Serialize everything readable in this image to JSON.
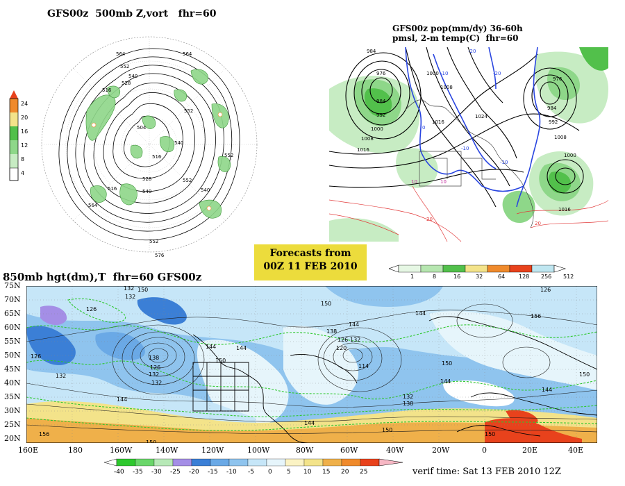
{
  "panel_500mb": {
    "title": "GFS00z  500mb Z,vort   fhr=60",
    "colorbar_labels": [
      "24",
      "20",
      "16",
      "12",
      "8",
      "4"
    ],
    "contour_labels": [
      "564",
      "564",
      "552",
      "540",
      "528",
      "516",
      "504",
      "552",
      "552",
      "540",
      "516",
      "528",
      "540",
      "552",
      "564",
      "576",
      "552",
      "540",
      "516"
    ]
  },
  "panel_precip": {
    "title_line1": "GFS00z pop(mm/dy) 36-60h",
    "title_line2": "pmsl, 2-m temp(C)  fhr=60",
    "colorbar_labels": [
      "1",
      "8",
      "16",
      "32",
      "64",
      "128",
      "256",
      "512"
    ],
    "pressure_labels": [
      "984",
      "976",
      "984",
      "992",
      "1000",
      "1008",
      "1016",
      "1024",
      "1016",
      "1008",
      "1000",
      "976",
      "984",
      "992",
      "1000",
      "1008",
      "1016"
    ],
    "temp_labels": [
      "-20",
      "-10",
      "-20",
      "0",
      "-10",
      "-10",
      "10",
      "20",
      "10",
      "20"
    ]
  },
  "forecast_box": {
    "line1": "Forecasts from",
    "line2": "00Z 11 FEB 2010"
  },
  "panel_850mb": {
    "title": "850mb hgt(dm),T  fhr=60 GFS00z",
    "lat_labels": [
      "75N",
      "70N",
      "65N",
      "60N",
      "55N",
      "50N",
      "45N",
      "40N",
      "35N",
      "30N",
      "25N",
      "20N"
    ],
    "lon_labels": [
      "160E",
      "180",
      "160W",
      "140W",
      "120W",
      "100W",
      "80W",
      "60W",
      "40W",
      "20W",
      "0",
      "20E",
      "40E"
    ],
    "height_labels": [
      "132",
      "132",
      "126",
      "150",
      "144",
      "126",
      "144",
      "144",
      "138",
      "126",
      "120",
      "132",
      "114",
      "150",
      "132",
      "132",
      "144",
      "150",
      "126",
      "150",
      "156",
      "144",
      "150",
      "138",
      "132",
      "144",
      "150",
      "156",
      "132",
      "138",
      "144",
      "150",
      "150",
      "144",
      "126"
    ],
    "colorbar_labels": [
      "-40",
      "-35",
      "-30",
      "-25",
      "-20",
      "-15",
      "-10",
      "-5",
      "0",
      "5",
      "10",
      "15",
      "20",
      "25"
    ],
    "verif_time": "verif time: Sat 13 FEB 2010 12Z"
  },
  "colors": {
    "ocean_cold": "#3b7fd6",
    "ocean_mid": "#8fc4ee",
    "ocean_light": "#c6e6f8",
    "land_light": "#e6f5fb",
    "warm_yellow": "#f3e38a",
    "warm_orange": "#efb04a",
    "hot_red": "#e8421c",
    "precip_green": "#52c04b",
    "forecast_box": "#ecdc3c"
  }
}
